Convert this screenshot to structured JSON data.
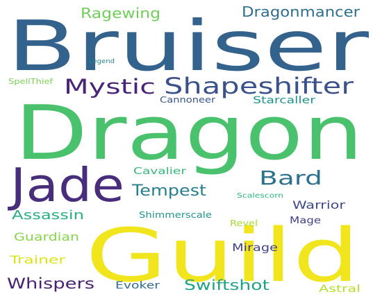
{
  "word_cloud": {
    "words": [
      {
        "text": "Bruiser",
        "color": "#33628d"
      },
      {
        "text": "Dragon",
        "color": "#4ac26d"
      },
      {
        "text": "Guild",
        "color": "#f1e51d"
      },
      {
        "text": "Jade",
        "color": "#472d7b"
      },
      {
        "text": "Shapeshifter",
        "color": "#3b518b"
      },
      {
        "text": "Mystic",
        "color": "#482576"
      },
      {
        "text": "Bard",
        "color": "#2c728e"
      },
      {
        "text": "Tempest",
        "color": "#277f8e"
      },
      {
        "text": "Ragewing",
        "color": "#6ece58"
      },
      {
        "text": "Dragonmancer",
        "color": "#2e6e8e"
      },
      {
        "text": "Whispers",
        "color": "#482173"
      },
      {
        "text": "Swiftshot",
        "color": "#1fa187"
      },
      {
        "text": "Assassin",
        "color": "#26ad81"
      },
      {
        "text": "Guardian",
        "color": "#86d549"
      },
      {
        "text": "Warrior",
        "color": "#3e4989"
      },
      {
        "text": "Mirage",
        "color": "#424086"
      },
      {
        "text": "Trainer",
        "color": "#dde318"
      },
      {
        "text": "Starcaller",
        "color": "#20928c"
      },
      {
        "text": "Cannoneer",
        "color": "#3a548c"
      },
      {
        "text": "Cavalier",
        "color": "#35b779"
      },
      {
        "text": "Shimmerscale",
        "color": "#1f948c"
      },
      {
        "text": "Mage",
        "color": "#414287"
      },
      {
        "text": "Evoker",
        "color": "#306a8e"
      },
      {
        "text": "Astral",
        "color": "#b5de2b"
      },
      {
        "text": "Revel",
        "color": "#a5db36"
      },
      {
        "text": "Scalescorn",
        "color": "#2fb47c"
      },
      {
        "text": "SpellThief",
        "color": "#7ad151"
      },
      {
        "text": "Legend",
        "color": "#25838e"
      }
    ]
  }
}
